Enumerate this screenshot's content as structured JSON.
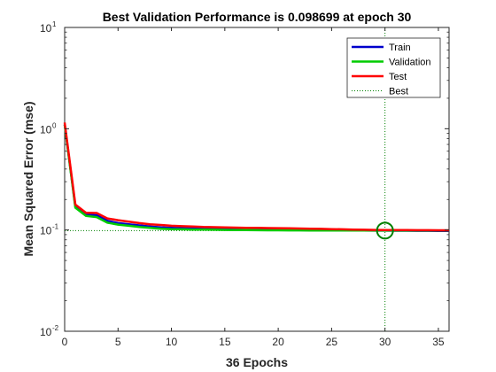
{
  "chart_data": {
    "type": "line",
    "title": "Best Validation Performance is 0.098699 at epoch 30",
    "xlabel": "36 Epochs",
    "ylabel": "Mean Squared Error  (mse)",
    "xlim": [
      0,
      36
    ],
    "ylim": [
      0.01,
      10
    ],
    "y_scale": "log",
    "x_ticks": [
      0,
      5,
      10,
      15,
      20,
      25,
      30,
      35
    ],
    "y_ticks": [
      {
        "value": 0.01,
        "base": "10",
        "exp": "-2"
      },
      {
        "value": 0.1,
        "base": "10",
        "exp": "-1"
      },
      {
        "value": 1,
        "base": "10",
        "exp": "0"
      },
      {
        "value": 10,
        "base": "10",
        "exp": "1"
      }
    ],
    "grid": false,
    "legend_position": "top-right",
    "x": [
      0,
      1,
      2,
      3,
      4,
      5,
      6,
      7,
      8,
      9,
      10,
      11,
      12,
      13,
      14,
      15,
      16,
      17,
      18,
      19,
      20,
      21,
      22,
      23,
      24,
      25,
      26,
      27,
      28,
      29,
      30,
      31,
      32,
      33,
      34,
      35,
      36
    ],
    "series": [
      {
        "name": "Train",
        "color": "#0000cc",
        "style": "solid",
        "values": [
          1.1,
          0.17,
          0.142,
          0.14,
          0.123,
          0.117,
          0.114,
          0.111,
          0.108,
          0.106,
          0.105,
          0.104,
          0.1035,
          0.103,
          0.1025,
          0.102,
          0.1015,
          0.101,
          0.1007,
          0.1005,
          0.1003,
          0.1,
          0.0998,
          0.0996,
          0.0994,
          0.0992,
          0.099,
          0.0988,
          0.0987,
          0.0986,
          0.0985,
          0.0984,
          0.0983,
          0.0982,
          0.0981,
          0.098,
          0.0979
        ]
      },
      {
        "name": "Validation",
        "color": "#00cc00",
        "style": "solid",
        "values": [
          1.1,
          0.166,
          0.138,
          0.134,
          0.118,
          0.113,
          0.11,
          0.107,
          0.105,
          0.103,
          0.102,
          0.1015,
          0.101,
          0.1007,
          0.1005,
          0.1002,
          0.1,
          0.0998,
          0.0996,
          0.0994,
          0.0993,
          0.0992,
          0.0991,
          0.099,
          0.0989,
          0.0988,
          0.0988,
          0.0987,
          0.0987,
          0.0987,
          0.098699,
          0.0987,
          0.0987,
          0.0988,
          0.0988,
          0.0988,
          0.0988
        ]
      },
      {
        "name": "Test",
        "color": "#ff0000",
        "style": "solid",
        "values": [
          1.15,
          0.178,
          0.148,
          0.147,
          0.13,
          0.125,
          0.121,
          0.117,
          0.114,
          0.112,
          0.11,
          0.109,
          0.108,
          0.107,
          0.1065,
          0.106,
          0.1055,
          0.105,
          0.1048,
          0.1045,
          0.1043,
          0.104,
          0.1035,
          0.103,
          0.1025,
          0.102,
          0.1015,
          0.101,
          0.1005,
          0.1002,
          0.1,
          0.0998,
          0.0997,
          0.0996,
          0.0995,
          0.0994,
          0.0993
        ]
      },
      {
        "name": "Best",
        "color": "#008000",
        "style": "dotted"
      }
    ],
    "best": {
      "epoch": 30,
      "value": 0.098699,
      "color": "#008000"
    }
  }
}
